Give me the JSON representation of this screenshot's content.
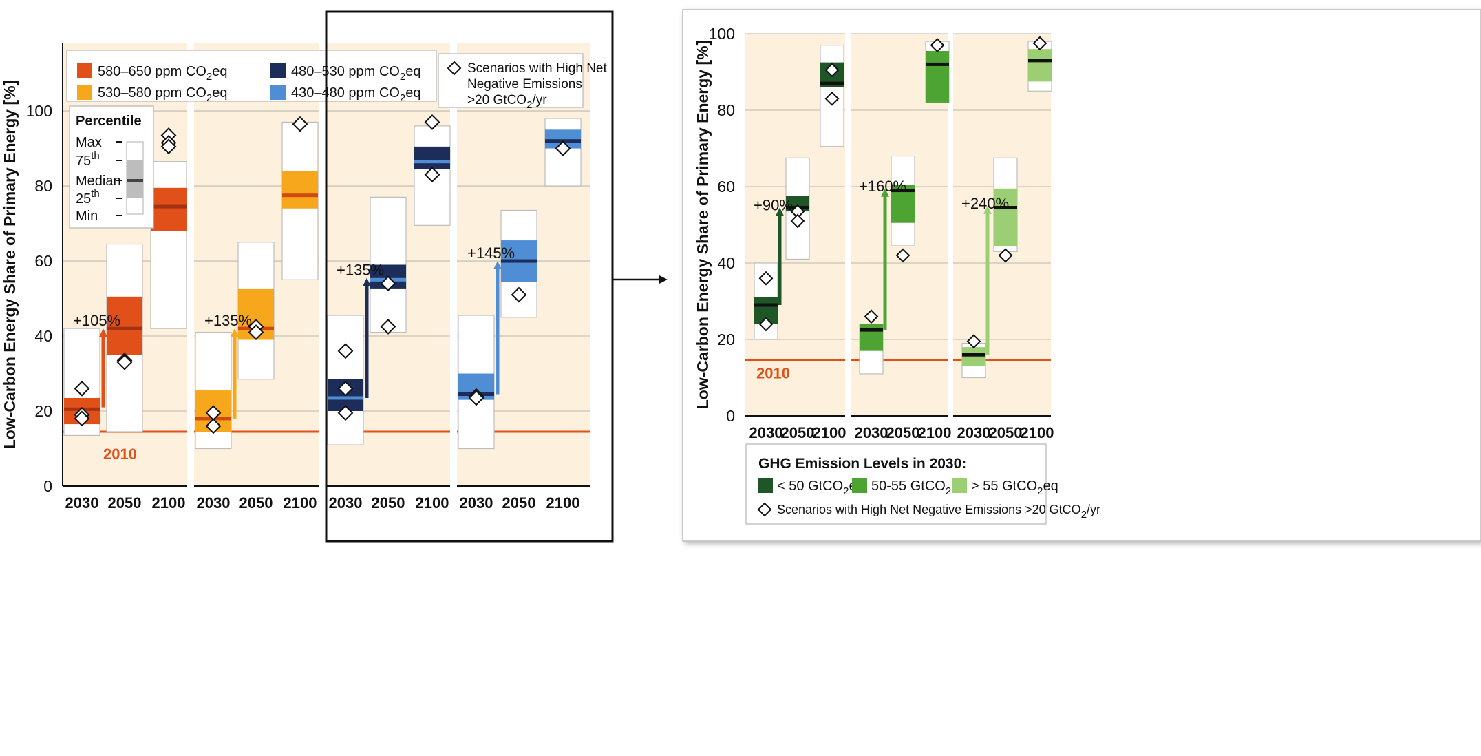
{
  "colors": {
    "panel_bg": "#fdf0dc",
    "orange": "#e2501a",
    "orange_median": "#a33312",
    "yellow": "#f6a71b",
    "yellow_median": "#d04a14",
    "navy": "#1d2d5a",
    "navy_median": "#4f8ed4",
    "blue": "#4f8ed4",
    "blue_median": "#1d2d5a",
    "dark_green": "#1f5627",
    "mid_green": "#4ea432",
    "light_green": "#9ccf74",
    "ref_line": "#e2501a",
    "gridline": "#c8c2ba"
  },
  "chart_data": [
    {
      "type": "box",
      "ylabel": "Low-Carbon Energy Share of Primary Energy [%]",
      "ylim": [
        0,
        118
      ],
      "yticks": [
        "0",
        "20",
        "40",
        "60",
        "80",
        "100"
      ],
      "categories": [
        "2030",
        "2050",
        "2100"
      ],
      "reference_line": {
        "value": 14.5,
        "label": "2010"
      },
      "legend": {
        "items": [
          {
            "label_main": "580–650 ppm CO",
            "label_sub": "2",
            "label_tail": "eq",
            "color": "orange"
          },
          {
            "label_main": "530–580 ppm CO",
            "label_sub": "2",
            "label_tail": "eq",
            "color": "yellow"
          },
          {
            "label_main": "480–530 ppm CO",
            "label_sub": "2",
            "label_tail": "eq",
            "color": "navy"
          },
          {
            "label_main": "430–480 ppm CO",
            "label_sub": "2",
            "label_tail": "eq",
            "color": "blue"
          }
        ],
        "percentile_title": "Percentile",
        "percentile_labels": [
          {
            "main": "Max",
            "sup": ""
          },
          {
            "main": "75",
            "sup": "th"
          },
          {
            "main": "Median",
            "sup": ""
          },
          {
            "main": "25",
            "sup": "th"
          },
          {
            "main": "Min",
            "sup": ""
          }
        ],
        "diamond_line1": "Scenarios with High Net",
        "diamond_line2": "Negative Emissions",
        "diamond_line3_main": ">20 GtCO",
        "diamond_line3_sub": "2",
        "diamond_line3_tail": "/yr"
      },
      "series": [
        {
          "name": "580–650 ppm CO2eq",
          "color": "orange",
          "boxes": [
            {
              "x": "2030",
              "min": 13.5,
              "q1": 16.5,
              "median": 20.5,
              "q3": 23.5,
              "max": 42
            },
            {
              "x": "2050",
              "min": 14.5,
              "q1": 35,
              "median": 42,
              "q3": 50.5,
              "max": 64.5
            },
            {
              "x": "2100",
              "min": 42,
              "q1": 68,
              "median": 74.5,
              "q3": 79.5,
              "max": 86.5
            }
          ],
          "diamonds": [
            [
              0,
              26
            ],
            [
              0,
              19
            ],
            [
              0,
              18
            ],
            [
              1,
              33.5
            ],
            [
              1,
              33
            ],
            [
              2,
              93.5
            ],
            [
              2,
              91.5
            ],
            [
              2,
              90.5
            ]
          ],
          "arrow": {
            "from": 21,
            "to": 42,
            "label": "+105%"
          }
        },
        {
          "name": "530–580 ppm CO2eq",
          "color": "yellow",
          "boxes": [
            {
              "x": "2030",
              "min": 10,
              "q1": 14.5,
              "median": 18,
              "q3": 25.5,
              "max": 41
            },
            {
              "x": "2050",
              "min": 28.5,
              "q1": 39,
              "median": 42,
              "q3": 52.5,
              "max": 65
            },
            {
              "x": "2100",
              "min": 55,
              "q1": 74,
              "median": 77.5,
              "q3": 84,
              "max": 97
            }
          ],
          "diamonds": [
            [
              0,
              19.5
            ],
            [
              0,
              16
            ],
            [
              1,
              42.5
            ],
            [
              1,
              41
            ],
            [
              2,
              96.5
            ]
          ],
          "arrow": {
            "from": 18,
            "to": 42,
            "label": "+135%"
          }
        },
        {
          "name": "480–530 ppm CO2eq",
          "color": "navy",
          "boxes": [
            {
              "x": "2030",
              "min": 11,
              "q1": 20,
              "median": 23.5,
              "q3": 28.5,
              "max": 45.5
            },
            {
              "x": "2050",
              "min": 41,
              "q1": 52.5,
              "median": 55,
              "q3": 59,
              "max": 77
            },
            {
              "x": "2100",
              "min": 69.5,
              "q1": 84.5,
              "median": 86.5,
              "q3": 90.5,
              "max": 96
            }
          ],
          "diamonds": [
            [
              0,
              36
            ],
            [
              0,
              26
            ],
            [
              0,
              19.5
            ],
            [
              1,
              54
            ],
            [
              1,
              42.5
            ],
            [
              2,
              97
            ],
            [
              2,
              83
            ]
          ],
          "arrow": {
            "from": 23.5,
            "to": 55.5,
            "label": "+135%"
          }
        },
        {
          "name": "430–480 ppm CO2eq",
          "color": "blue",
          "boxes": [
            {
              "x": "2030",
              "min": 10,
              "q1": 23,
              "median": 24.5,
              "q3": 30,
              "max": 45.5
            },
            {
              "x": "2050",
              "min": 45,
              "q1": 54.5,
              "median": 60,
              "q3": 65.5,
              "max": 73.5
            },
            {
              "x": "2100",
              "min": 80,
              "q1": 90,
              "median": 92,
              "q3": 95,
              "max": 98
            }
          ],
          "diamonds": [
            [
              0,
              24
            ],
            [
              0,
              23.5
            ],
            [
              1,
              51
            ],
            [
              2,
              90
            ]
          ],
          "arrow": {
            "from": 24.5,
            "to": 60,
            "label": "+145%"
          }
        }
      ]
    },
    {
      "type": "box",
      "ylabel": "Low-Carbon Energy Share of Primary Energy [%]",
      "ylim": [
        0,
        100
      ],
      "yticks": [
        "0",
        "20",
        "40",
        "60",
        "80",
        "100"
      ],
      "categories": [
        "2030",
        "2050",
        "2100"
      ],
      "reference_line": {
        "value": 14.5,
        "label": "2010"
      },
      "legend": {
        "title": "GHG Emission Levels in 2030:",
        "items": [
          {
            "label_main": "< 50 GtCO",
            "label_sub": "2",
            "label_tail": "eq",
            "color": "dark_green"
          },
          {
            "label_main": "50-55 GtCO",
            "label_sub": "2",
            "label_tail": "eq",
            "color": "mid_green"
          },
          {
            "label_main": "> 55 GtCO",
            "label_sub": "2",
            "label_tail": "eq",
            "color": "light_green"
          }
        ],
        "diamond_main": "Scenarios with High Net Negative Emissions >20 GtCO",
        "diamond_sub": "2",
        "diamond_tail": "/yr"
      },
      "series": [
        {
          "name": "< 50 GtCO2eq",
          "color": "dark_green",
          "boxes": [
            {
              "x": "2030",
              "min": 20,
              "q1": 24,
              "median": 29,
              "q3": 31,
              "max": 40
            },
            {
              "x": "2050",
              "min": 41,
              "q1": 53.5,
              "median": 54.5,
              "q3": 57.5,
              "max": 67.5
            },
            {
              "x": "2100",
              "min": 70.5,
              "q1": 86,
              "median": 87,
              "q3": 92.5,
              "max": 97
            }
          ],
          "diamonds": [
            [
              0,
              36
            ],
            [
              0,
              24
            ],
            [
              1,
              53.5
            ],
            [
              1,
              51
            ],
            [
              2,
              90.5
            ],
            [
              2,
              83
            ]
          ],
          "arrow": {
            "from": 29,
            "to": 54.5,
            "label": "+90%"
          }
        },
        {
          "name": "50-55 GtCO2eq",
          "color": "mid_green",
          "boxes": [
            {
              "x": "2030",
              "min": 11,
              "q1": 17,
              "median": 22.5,
              "q3": 24,
              "max": 24
            },
            {
              "x": "2050",
              "min": 44.5,
              "q1": 50.5,
              "median": 59,
              "q3": 60.5,
              "max": 68
            },
            {
              "x": "2100",
              "min": 82,
              "q1": 82,
              "median": 92,
              "q3": 95.5,
              "max": 98
            }
          ],
          "diamonds": [
            [
              0,
              26
            ],
            [
              1,
              42
            ],
            [
              2,
              97
            ]
          ],
          "arrow": {
            "from": 22.5,
            "to": 59.5,
            "label": "+160%"
          }
        },
        {
          "name": "> 55 GtCO2eq",
          "color": "light_green",
          "boxes": [
            {
              "x": "2030",
              "min": 10,
              "q1": 13,
              "median": 16,
              "q3": 18,
              "max": 19
            },
            {
              "x": "2050",
              "min": 43,
              "q1": 44.5,
              "median": 54.5,
              "q3": 59.5,
              "max": 67.5
            },
            {
              "x": "2100",
              "min": 85,
              "q1": 87.5,
              "median": 93,
              "q3": 96,
              "max": 98
            }
          ],
          "diamonds": [
            [
              0,
              19.5
            ],
            [
              1,
              42
            ],
            [
              2,
              97.5
            ]
          ],
          "arrow": {
            "from": 16,
            "to": 55,
            "label": "+240%"
          }
        }
      ]
    }
  ]
}
